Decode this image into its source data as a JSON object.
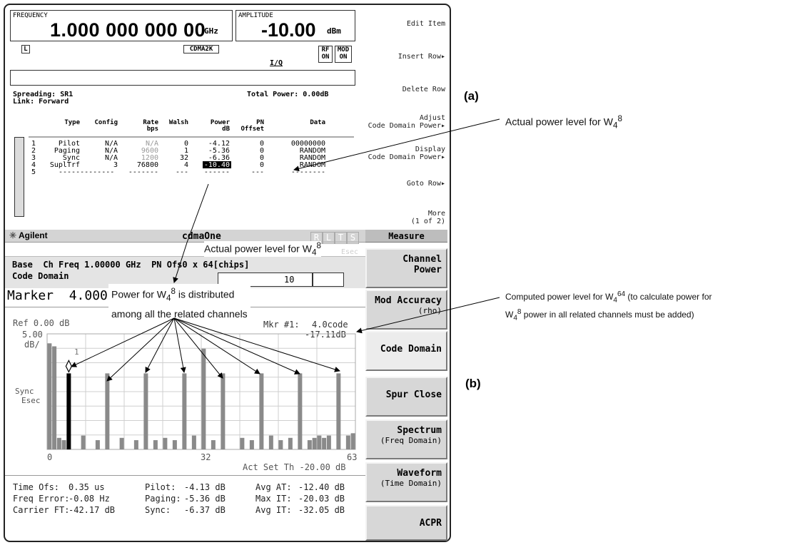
{
  "freq": {
    "label": "FREQUENCY",
    "value": "1.000 000 000 00",
    "unit": "GHz"
  },
  "amp": {
    "label": "AMPLITUDE",
    "value": "-10.00",
    "unit": "dBm"
  },
  "status": {
    "l": "L",
    "cdma": "CDMA2K",
    "iq": "I/Q",
    "rf": "RF",
    "rf_on": "ON",
    "mod": "MOD",
    "mod_on": "ON"
  },
  "top_softkeys": [
    {
      "l1": "",
      "l2": "Edit Item"
    },
    {
      "l1": "",
      "l2": "Insert Row▸"
    },
    {
      "l1": "",
      "l2": "Delete Row"
    },
    {
      "l1": "Adjust",
      "l2": "Code Domain Power▸"
    },
    {
      "l1": "Display",
      "l2": "Code Domain Power▸"
    },
    {
      "l1": "",
      "l2": "Goto Row▸"
    },
    {
      "l1": "More",
      "l2": "(1 of 2)"
    }
  ],
  "spreading": "Spreading: SR1",
  "link": "Link: Forward",
  "total_power": "Total Power:  0.00dB",
  "table": {
    "headers": [
      [
        "",
        "Type",
        "Config",
        "Rate",
        "Walsh",
        "Power",
        "PN",
        "Data"
      ],
      [
        "",
        "",
        "",
        "bps",
        "",
        "dB",
        "Offset",
        ""
      ]
    ],
    "rows": [
      [
        "1",
        "Pilot",
        "N/A",
        "N/A",
        "0",
        "-4.12",
        "0",
        "00000000"
      ],
      [
        "2",
        "Paging",
        "N/A",
        "9600",
        "1",
        "-5.36",
        "0",
        "RANDOM"
      ],
      [
        "3",
        "Sync",
        "N/A",
        "1200",
        "32",
        "-6.36",
        "0",
        "RANDOM"
      ],
      [
        "4",
        "SuplTrf",
        "3",
        "76800",
        "4",
        "-10.40",
        "0",
        "RANDOM"
      ],
      [
        "5",
        "-------------",
        "",
        "-------",
        "---",
        "------",
        "---",
        "--------"
      ]
    ]
  },
  "analyzer": {
    "brand": "Agilent",
    "mode": "cdmaOne",
    "indicators": [
      "R",
      "L",
      "T",
      "S"
    ],
    "esec": "Esec",
    "base": "Base  Ch Freq 1.00000 GHz  PN Ofs0 x 64[chips]",
    "code_domain": "Code Domain",
    "marker_field": "10",
    "marker": "Marker  4.0000",
    "ref": "Ref 0.00 dB",
    "scale1": "5.00",
    "scale2": "dB/",
    "mkr_label": "Mkr #1:",
    "mkr_code": "4.0code",
    "mkr_value": "-17.11dB",
    "sync": "Sync",
    "esec_axis": "Esec",
    "x_left": "0",
    "x_mid": "32",
    "x_right": "63",
    "act_set": "Act Set Th -20.00 dB",
    "marker_num": "1"
  },
  "chart_data": {
    "type": "bar",
    "xlabel": "",
    "ylabel": "",
    "xlim": [
      0,
      63
    ],
    "ylim": [
      -50,
      0
    ],
    "bars": [
      {
        "code": 0,
        "db": -4.1
      },
      {
        "code": 1,
        "db": -5.4
      },
      {
        "code": 4,
        "db": -17.1,
        "highlight": true
      },
      {
        "code": 12,
        "db": -17.1
      },
      {
        "code": 20,
        "db": -17.1
      },
      {
        "code": 28,
        "db": -17.1
      },
      {
        "code": 32,
        "db": -6.4
      },
      {
        "code": 36,
        "db": -17.1
      },
      {
        "code": 44,
        "db": -17.1
      },
      {
        "code": 52,
        "db": -17.1
      },
      {
        "code": 60,
        "db": -17.1
      },
      {
        "code": 2,
        "db": -45
      },
      {
        "code": 3,
        "db": -46
      },
      {
        "code": 7,
        "db": -44
      },
      {
        "code": 10,
        "db": -46
      },
      {
        "code": 15,
        "db": -45
      },
      {
        "code": 18,
        "db": -46
      },
      {
        "code": 22,
        "db": -46
      },
      {
        "code": 24,
        "db": -45
      },
      {
        "code": 26,
        "db": -46
      },
      {
        "code": 30,
        "db": -44
      },
      {
        "code": 34,
        "db": -46
      },
      {
        "code": 40,
        "db": -45
      },
      {
        "code": 42,
        "db": -46
      },
      {
        "code": 46,
        "db": -44
      },
      {
        "code": 48,
        "db": -46
      },
      {
        "code": 50,
        "db": -45
      },
      {
        "code": 54,
        "db": -46
      },
      {
        "code": 55,
        "db": -45
      },
      {
        "code": 56,
        "db": -44
      },
      {
        "code": 57,
        "db": -45
      },
      {
        "code": 58,
        "db": -44
      },
      {
        "code": 62,
        "db": -44
      },
      {
        "code": 63,
        "db": -43
      }
    ]
  },
  "stats": [
    [
      "Time Ofs:",
      "0.35 us",
      "Pilot:",
      "-4.13 dB",
      "Avg AT:",
      "-12.40 dB"
    ],
    [
      "Freq Error:",
      "-0.08 Hz",
      "Paging:",
      "-5.36 dB",
      "Max IT:",
      "-20.03 dB"
    ],
    [
      "Carrier FT:",
      "-42.17 dB",
      "Sync:",
      "-6.37 dB",
      "Avg IT:",
      "-32.05 dB"
    ]
  ],
  "measure_menu": {
    "title": "Measure",
    "keys": [
      {
        "l1": "Channel",
        "l2": "Power",
        "sub": ""
      },
      {
        "l1": "Mod Accuracy",
        "l2": "",
        "sub": "(rho)"
      },
      {
        "l1": "Code Domain",
        "l2": "",
        "sub": ""
      },
      {
        "l1": "Spur Close",
        "l2": "",
        "sub": ""
      },
      {
        "l1": "Spectrum",
        "l2": "",
        "sub": "(Freq Domain)"
      },
      {
        "l1": "Waveform",
        "l2": "",
        "sub": "(Time Domain)"
      },
      {
        "l1": "ACPR",
        "l2": "",
        "sub": ""
      }
    ]
  },
  "annotations": {
    "a": "(a)",
    "b": "(b)",
    "actual_power": "Actual power level for W",
    "actual_power_sub": "4",
    "actual_power_sup": "8",
    "computed_1a": "Computed power level for W",
    "computed_1b": "4",
    "computed_1c": "64",
    "computed_1d": " (to calculate power for",
    "computed_2a": "W",
    "computed_2b": "4",
    "computed_2c": "8",
    "computed_2d": " power in all related channels must be added)",
    "dist_1a": "Power for W",
    "dist_1b": "4",
    "dist_1c": "8",
    "dist_1d": " is distributed",
    "dist_2": "among all the related channels"
  }
}
